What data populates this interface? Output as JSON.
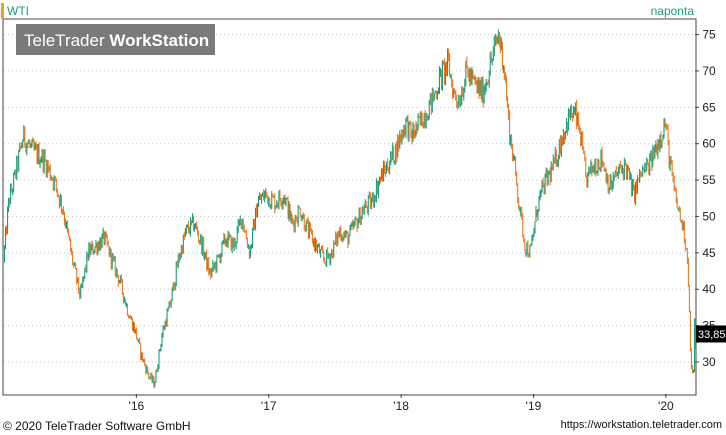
{
  "symbol": "WTI",
  "period": "naponta",
  "watermark": {
    "brand_light": "TeleTrader ",
    "brand_bold": "WorkStation"
  },
  "last_price": "33,85",
  "footer": {
    "copyright": "© 2020  TeleTrader Software GmbH",
    "url": "https://workstation.teletrader.com"
  },
  "colors": {
    "up": "#1b9e77",
    "down": "#f07820",
    "marker": "#f0a020",
    "label_bg": "#000000"
  },
  "chart_data": {
    "type": "line",
    "title": "WTI",
    "x_ticks": [
      "'16",
      "'17",
      "'18",
      "'19",
      "'20"
    ],
    "y_ticks": [
      30,
      35,
      40,
      45,
      50,
      55,
      60,
      65,
      70,
      75
    ],
    "ylim": [
      25.6,
      77
    ],
    "xlim": [
      2015.0,
      2020.22
    ],
    "grid": true,
    "series": [
      {
        "values": [
          [
            2015.0,
            44
          ],
          [
            2015.04,
            52
          ],
          [
            2015.08,
            55
          ],
          [
            2015.15,
            61
          ],
          [
            2015.22,
            59
          ],
          [
            2015.3,
            58
          ],
          [
            2015.38,
            55
          ],
          [
            2015.45,
            51
          ],
          [
            2015.52,
            44
          ],
          [
            2015.58,
            39
          ],
          [
            2015.64,
            45
          ],
          [
            2015.7,
            46
          ],
          [
            2015.76,
            47
          ],
          [
            2015.82,
            44
          ],
          [
            2015.88,
            41
          ],
          [
            2015.94,
            37
          ],
          [
            2016.0,
            34
          ],
          [
            2016.04,
            31
          ],
          [
            2016.1,
            28
          ],
          [
            2016.14,
            27
          ],
          [
            2016.2,
            34
          ],
          [
            2016.26,
            38
          ],
          [
            2016.32,
            44
          ],
          [
            2016.38,
            48
          ],
          [
            2016.44,
            49
          ],
          [
            2016.5,
            46
          ],
          [
            2016.56,
            42
          ],
          [
            2016.62,
            44
          ],
          [
            2016.68,
            47
          ],
          [
            2016.74,
            46
          ],
          [
            2016.8,
            50
          ],
          [
            2016.86,
            45
          ],
          [
            2016.92,
            52
          ],
          [
            2016.98,
            53
          ],
          [
            2017.05,
            52
          ],
          [
            2017.12,
            53
          ],
          [
            2017.18,
            49
          ],
          [
            2017.24,
            51
          ],
          [
            2017.3,
            48
          ],
          [
            2017.36,
            46
          ],
          [
            2017.42,
            44
          ],
          [
            2017.48,
            45
          ],
          [
            2017.54,
            48
          ],
          [
            2017.6,
            47
          ],
          [
            2017.66,
            49
          ],
          [
            2017.72,
            51
          ],
          [
            2017.78,
            52
          ],
          [
            2017.84,
            55
          ],
          [
            2017.9,
            57
          ],
          [
            2017.96,
            59
          ],
          [
            2018.04,
            63
          ],
          [
            2018.08,
            61
          ],
          [
            2018.12,
            62
          ],
          [
            2018.18,
            64
          ],
          [
            2018.24,
            66
          ],
          [
            2018.3,
            69
          ],
          [
            2018.36,
            71
          ],
          [
            2018.4,
            67
          ],
          [
            2018.44,
            66
          ],
          [
            2018.5,
            70
          ],
          [
            2018.56,
            68
          ],
          [
            2018.62,
            67
          ],
          [
            2018.68,
            71
          ],
          [
            2018.74,
            75
          ],
          [
            2018.78,
            71
          ],
          [
            2018.82,
            62
          ],
          [
            2018.86,
            57
          ],
          [
            2018.9,
            51
          ],
          [
            2018.94,
            46
          ],
          [
            2018.98,
            45
          ],
          [
            2019.04,
            52
          ],
          [
            2019.1,
            55
          ],
          [
            2019.16,
            57
          ],
          [
            2019.22,
            61
          ],
          [
            2019.28,
            64
          ],
          [
            2019.32,
            64
          ],
          [
            2019.36,
            61
          ],
          [
            2019.4,
            55
          ],
          [
            2019.46,
            57
          ],
          [
            2019.52,
            58
          ],
          [
            2019.58,
            54
          ],
          [
            2019.64,
            56
          ],
          [
            2019.7,
            57
          ],
          [
            2019.76,
            53
          ],
          [
            2019.82,
            56
          ],
          [
            2019.88,
            57
          ],
          [
            2019.94,
            60
          ],
          [
            2020.0,
            63
          ],
          [
            2020.03,
            58
          ],
          [
            2020.07,
            53
          ],
          [
            2020.11,
            50
          ],
          [
            2020.14,
            48
          ],
          [
            2020.17,
            44
          ],
          [
            2020.19,
            31
          ],
          [
            2020.21,
            27
          ],
          [
            2020.22,
            33.85
          ]
        ]
      }
    ]
  }
}
